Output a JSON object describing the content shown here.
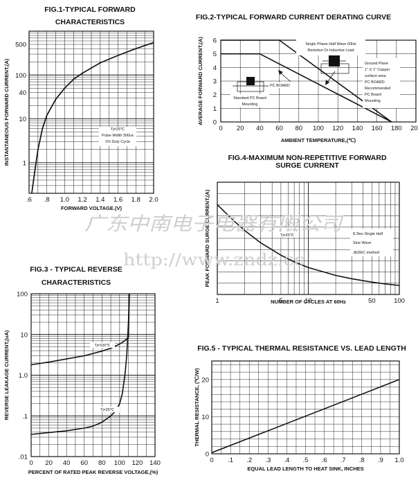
{
  "watermark": {
    "company": "广东中南电子电器有限公司",
    "url": "http://www.zndz.cc"
  },
  "chart_data": [
    {
      "id": "fig1",
      "type": "line",
      "title": "FIG.1-TYPICAL FORWARD",
      "subtitle": "CHARACTERISTICS",
      "xlabel": "FORWARD VOLTAGE.(V)",
      "ylabel": "INSTANTANEOUS FORWARD CURRENT,(A)",
      "xlim": [
        0.6,
        2.0
      ],
      "ylim": [
        0.2,
        1000
      ],
      "yscale": "log",
      "grid": true,
      "x_ticks": [
        ".6",
        ".8",
        "1.0",
        "1.2",
        "1.4",
        "1.6",
        "1.8",
        "2.0"
      ],
      "y_ticks": [
        "1",
        "10",
        "40",
        "100",
        "500"
      ],
      "annotations": [
        "Tj=25℃",
        "Pulse Width 300us",
        "1% Duty Cycle"
      ],
      "series": [
        {
          "x": [
            0.63,
            0.66,
            0.7,
            0.75,
            0.8,
            0.9,
            1.0,
            1.1,
            1.2,
            1.4,
            1.6,
            1.8,
            2.0
          ],
          "y": [
            0.2,
            0.55,
            2,
            6,
            12,
            28,
            50,
            80,
            110,
            190,
            280,
            400,
            550
          ]
        }
      ]
    },
    {
      "id": "fig2",
      "type": "line",
      "title": "FIG.2-TYPICAL FORWARD CURRENT DERATING CURVE",
      "xlabel": "AMBIENT TEMPERATURE,(℃)",
      "ylabel": "AVERAGE FORWARD CURRENT,(A)",
      "xlim": [
        0,
        200
      ],
      "ylim": [
        0,
        6
      ],
      "grid": true,
      "x_ticks": [
        "0",
        "20",
        "40",
        "60",
        "80",
        "100",
        "120",
        "140",
        "160",
        "180",
        "200"
      ],
      "y_ticks": [
        "0",
        "1",
        "2",
        "3",
        "4",
        "5",
        "6"
      ],
      "annotations": [
        "Single Phase Half Wave 60Hz",
        "Resistive Or Inductive Load",
        "PC BOARD",
        "Standard PC Board",
        "Mounting",
        "Ground Plane",
        "1\" X 1\" Copper",
        "surface area",
        "PC BOARD",
        "Recommended",
        "PC Board",
        "Mounting"
      ],
      "series": [
        {
          "x": [
            0,
            60,
            175
          ],
          "y": [
            6,
            6,
            0
          ]
        },
        {
          "x": [
            0,
            40,
            175
          ],
          "y": [
            5,
            5,
            0
          ]
        }
      ]
    },
    {
      "id": "fig3",
      "type": "line",
      "title": "FIG.3 - TYPICAL REVERSE",
      "subtitle": "CHARACTERISTICS",
      "xlabel": "PERCENT OF RATED PEAK REVERSE VOLTAGE,(%)",
      "ylabel": "REVERSE LEAKAGE CURRENT,(uA)",
      "xlim": [
        0,
        140
      ],
      "ylim": [
        0.01,
        100
      ],
      "yscale": "log",
      "grid": true,
      "x_ticks": [
        "0",
        "20",
        "40",
        "60",
        "80",
        "100",
        "120",
        "140"
      ],
      "y_ticks": [
        "100",
        "10",
        "1.0",
        ".1",
        ".01"
      ],
      "series": [
        {
          "name": "Tj=100℃",
          "x": [
            0,
            20,
            40,
            60,
            80,
            90,
            100,
            105,
            110,
            111
          ],
          "y": [
            1.8,
            2.1,
            2.5,
            3.0,
            3.9,
            4.6,
            5.8,
            6.8,
            8.5,
            100
          ]
        },
        {
          "name": "Tj=25℃",
          "x": [
            0,
            20,
            40,
            60,
            70,
            80,
            90,
            95,
            100,
            103,
            106,
            108,
            110,
            111
          ],
          "y": [
            0.035,
            0.039,
            0.043,
            0.05,
            0.056,
            0.07,
            0.1,
            0.13,
            0.2,
            0.35,
            1,
            3,
            20,
            100
          ]
        }
      ]
    },
    {
      "id": "fig4",
      "type": "line",
      "title": "FIG.4-MAXIMUM NON-REPETITIVE FORWARD",
      "subtitle": "SURGE CURRENT",
      "xlabel": "NUMBER OF CYCLES AT 60Hz",
      "ylabel": "PEAK FORWARD SURGE CURRENT,(A)",
      "xlim": [
        1,
        100
      ],
      "xscale": "log",
      "ylim": [
        0,
        500
      ],
      "grid": true,
      "x_ticks": [
        "1",
        "5",
        "10",
        "50",
        "100"
      ],
      "annotations": [
        "Tj=25℃",
        "8.3ms Single Half",
        "Sine Wave",
        "JEDEC method"
      ],
      "series": [
        {
          "x": [
            1,
            1.5,
            2,
            3,
            5,
            7,
            10,
            20,
            30,
            50,
            70,
            100
          ],
          "y": [
            400,
            330,
            285,
            230,
            175,
            145,
            120,
            85,
            70,
            55,
            47,
            40
          ]
        }
      ]
    },
    {
      "id": "fig5",
      "type": "line",
      "title": "FIG.5 - TYPICAL THERMAL RESISTANCE VS. LEAD LENGTH",
      "xlabel": "EQUAL LEAD LENGTH TO HEAT SINK, INCHES",
      "ylabel": "THERMAL RESISTANCE, (℃/W)",
      "xlim": [
        0,
        1.0
      ],
      "ylim": [
        0,
        25
      ],
      "grid": true,
      "x_ticks": [
        "0",
        ".1",
        ".2",
        ".3",
        ".4",
        ".5",
        ".6",
        ".7",
        ".8",
        ".9",
        "1.0"
      ],
      "y_ticks": [
        "0",
        "10",
        "20"
      ],
      "series": [
        {
          "x": [
            0,
            1.0
          ],
          "y": [
            0.3,
            20
          ]
        }
      ]
    }
  ]
}
